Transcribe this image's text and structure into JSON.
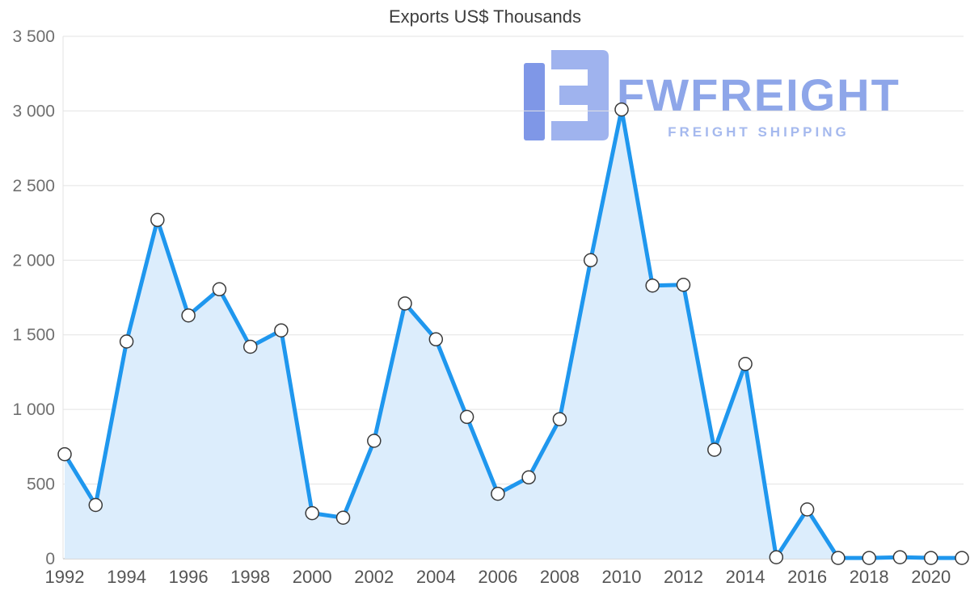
{
  "chart_data": {
    "type": "area",
    "title": "Exports US$ Thousands",
    "x": [
      1992,
      1993,
      1994,
      1995,
      1996,
      1997,
      1998,
      1999,
      2000,
      2001,
      2002,
      2003,
      2004,
      2005,
      2006,
      2007,
      2008,
      2009,
      2010,
      2011,
      2012,
      2013,
      2014,
      2015,
      2016,
      2017,
      2018,
      2019,
      2020,
      2021
    ],
    "series": [
      {
        "name": "Exports US$ Thousands",
        "values": [
          700,
          360,
          1455,
          2270,
          1630,
          1805,
          1420,
          1530,
          305,
          275,
          790,
          1710,
          1470,
          950,
          435,
          545,
          935,
          2000,
          3010,
          1830,
          1835,
          730,
          1305,
          10,
          330,
          5,
          5,
          10,
          5,
          5
        ]
      }
    ],
    "ylim": [
      0,
      3500
    ],
    "ytick_interval": 500,
    "ytick_labels": [
      "0",
      "500",
      "1 000",
      "1 500",
      "2 000",
      "2 500",
      "3 000",
      "3 500"
    ],
    "xtick_labels": [
      "1992",
      "1994",
      "1996",
      "1998",
      "2000",
      "2002",
      "2004",
      "2006",
      "2008",
      "2010",
      "2012",
      "2014",
      "2016",
      "2018",
      "2020"
    ],
    "grid": true,
    "legend": "none",
    "line_color": "#1f97ee",
    "fill_color": "#dcedfc",
    "marker_fill": "#ffffff",
    "marker_stroke": "#3a3a3a",
    "grid_color": "#e3e3e3",
    "axis_color": "#b0b0b0"
  },
  "watermark": {
    "brand": "FWFREIGHT",
    "tagline": "FREIGHT SHIPPING",
    "brand_color": "#8ea6e9",
    "tagline_color": "#a5b9ee",
    "logo_primary": "#9fb3ee",
    "logo_accent": "#7f97e7"
  }
}
